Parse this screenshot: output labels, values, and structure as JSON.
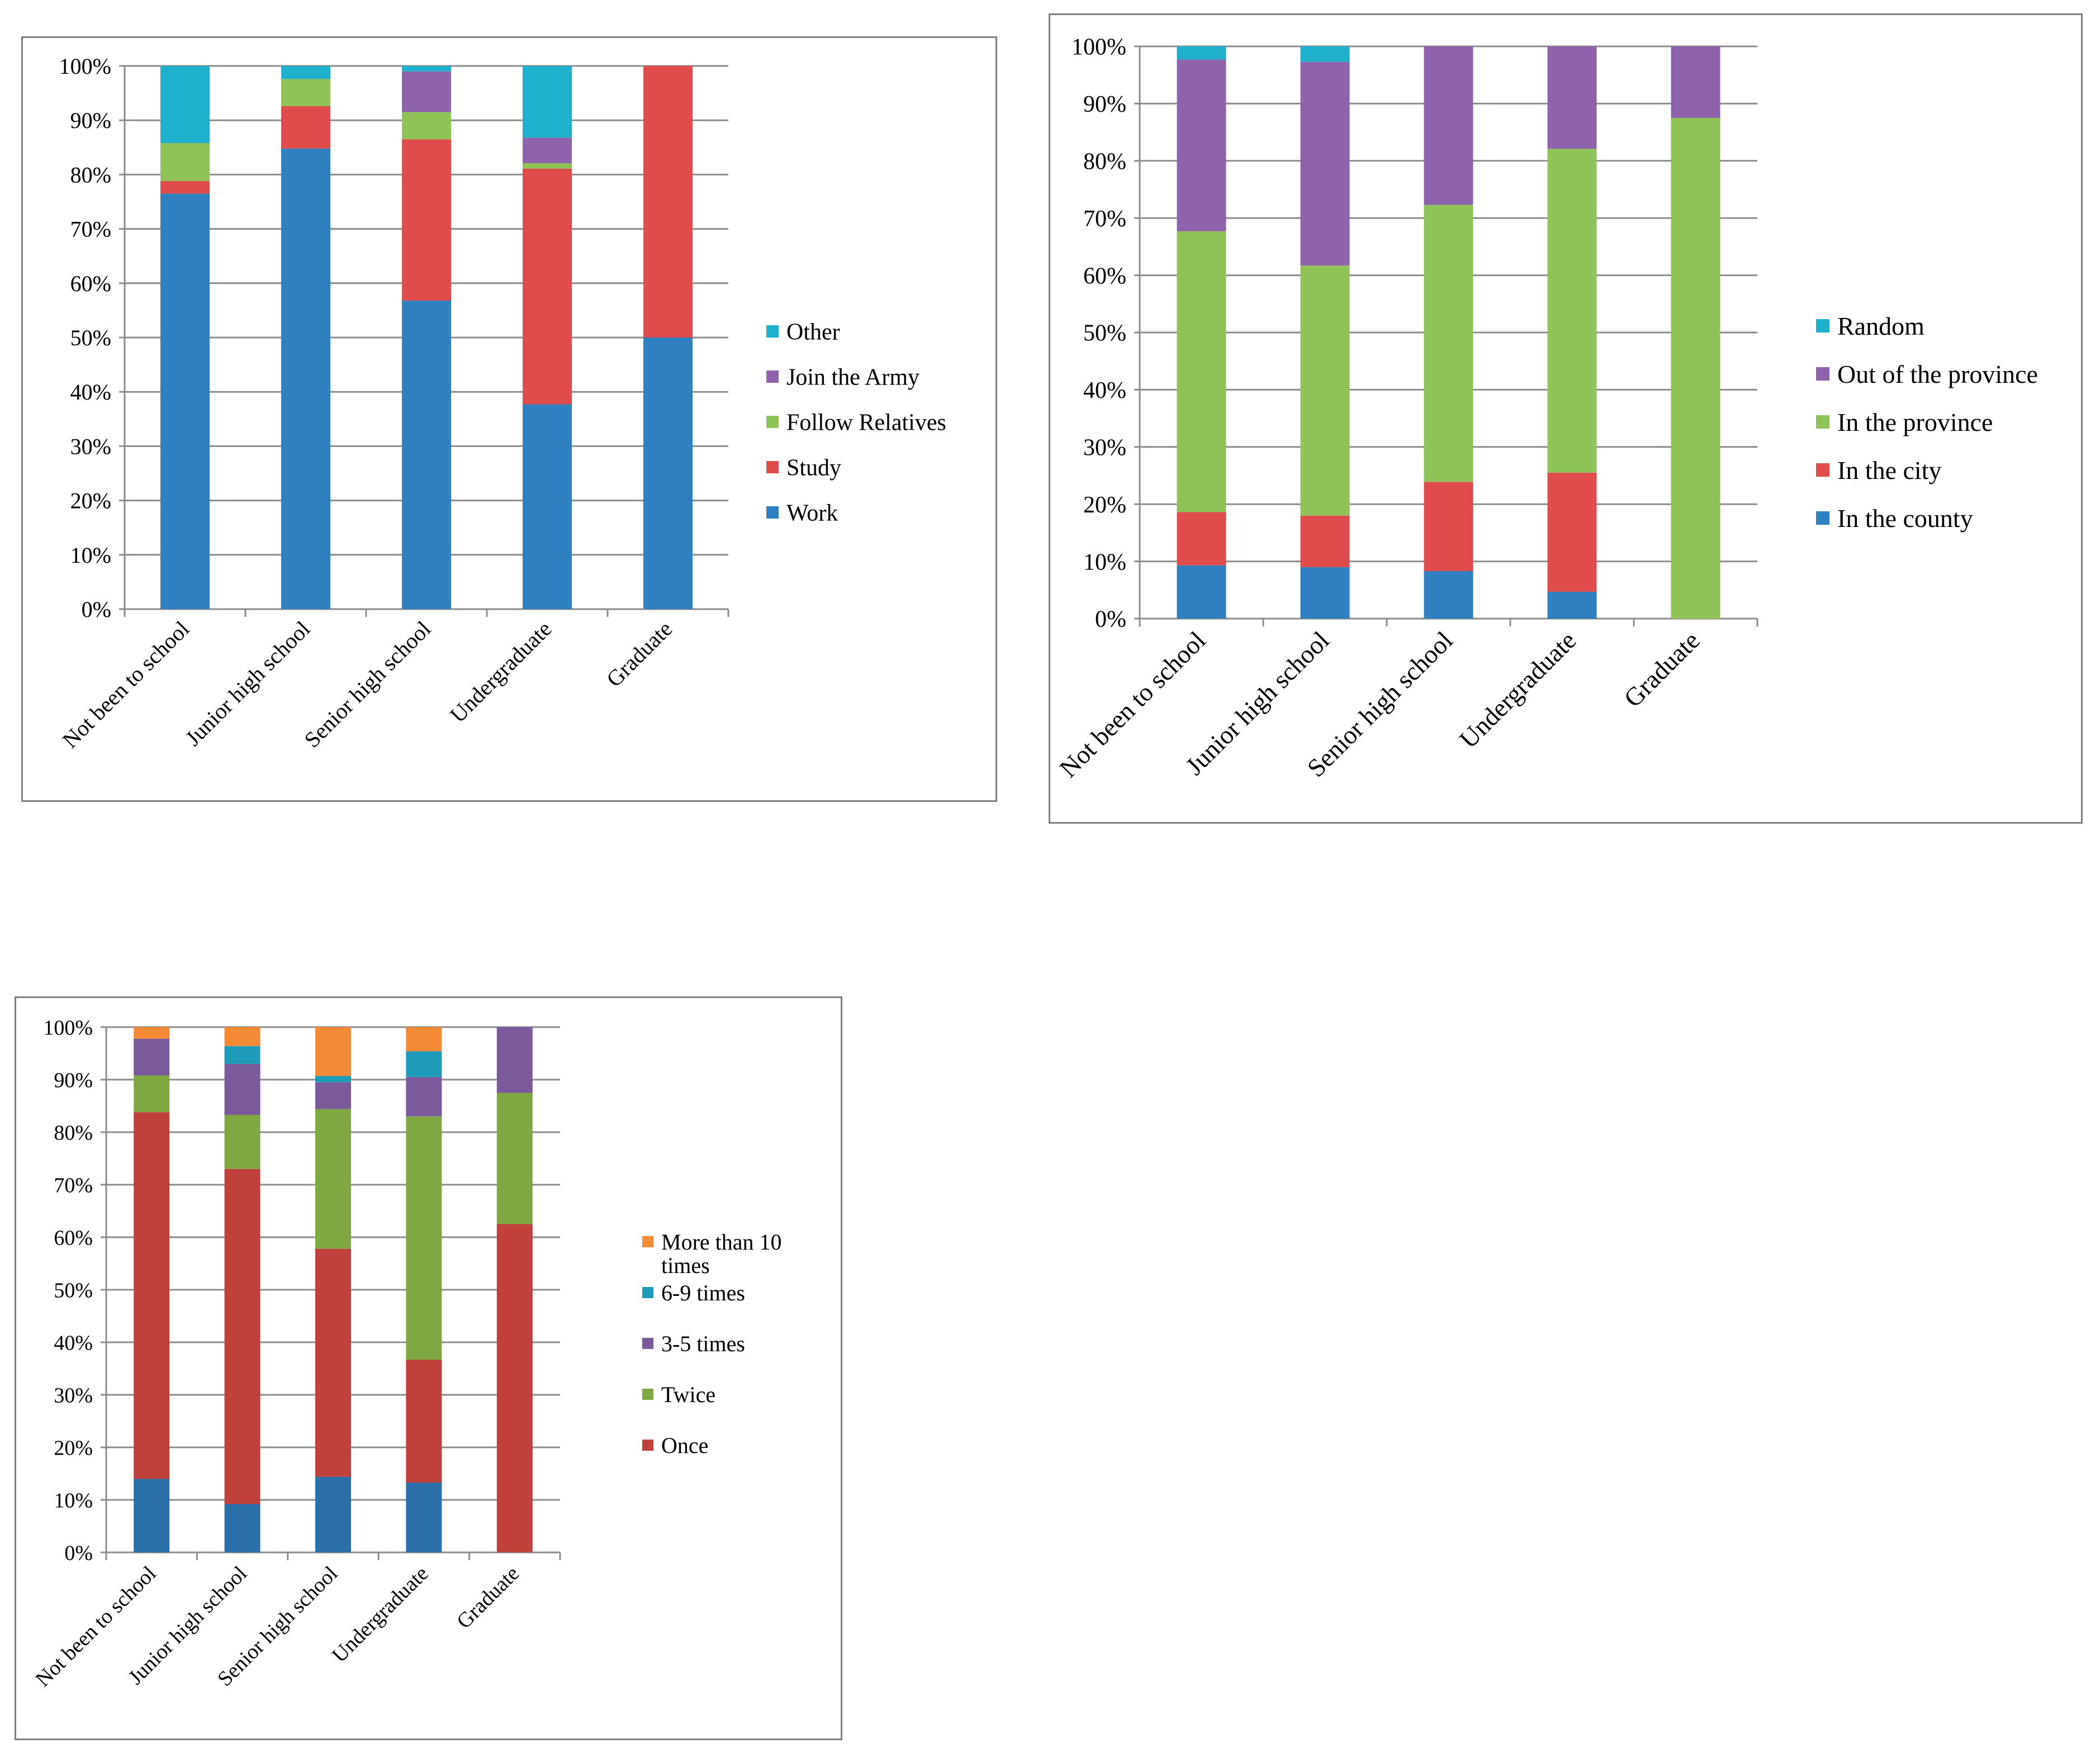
{
  "chart_data": [
    {
      "type": "bar",
      "stacked": true,
      "title": "",
      "xlabel": "",
      "ylabel": "",
      "ylim": [
        0,
        100
      ],
      "yticks": [
        "0%",
        "10%",
        "20%",
        "30%",
        "40%",
        "50%",
        "60%",
        "70%",
        "80%",
        "90%",
        "100%"
      ],
      "categories": [
        "Not been to school",
        "Junior high school",
        "Senior high school",
        "Undergraduate",
        "Graduate"
      ],
      "series": [
        {
          "name": "Work",
          "color": "#2e80c0",
          "values": [
            76.5,
            84.8,
            56.8,
            37.7,
            50.0
          ]
        },
        {
          "name": "Study",
          "color": "#e04b4b",
          "values": [
            2.3,
            7.8,
            29.7,
            43.4,
            50.0
          ]
        },
        {
          "name": "Follow Relatives",
          "color": "#8fc257",
          "values": [
            7.0,
            5.0,
            5.0,
            1.0,
            0
          ]
        },
        {
          "name": "Join the Army",
          "color": "#8f63ab",
          "values": [
            0,
            0,
            7.5,
            4.7,
            0
          ]
        },
        {
          "name": "Other",
          "color": "#1eb0cc",
          "values": [
            14.2,
            2.4,
            1.0,
            13.2,
            0
          ]
        }
      ],
      "legend": "right"
    },
    {
      "type": "bar",
      "stacked": true,
      "title": "",
      "xlabel": "",
      "ylabel": "",
      "ylim": [
        0,
        100
      ],
      "yticks": [
        "0%",
        "10%",
        "20%",
        "30%",
        "40%",
        "50%",
        "60%",
        "70%",
        "80%",
        "90%",
        "100%"
      ],
      "categories": [
        "Not been to school",
        "Junior high school",
        "Senior high school",
        "Undergraduate",
        "Graduate"
      ],
      "series": [
        {
          "name": "In the county",
          "color": "#2e80c0",
          "values": [
            9.3,
            9.0,
            8.3,
            4.7,
            0
          ]
        },
        {
          "name": "In the city",
          "color": "#e04b4b",
          "values": [
            9.3,
            9.0,
            15.6,
            20.8,
            0
          ]
        },
        {
          "name": "In the province",
          "color": "#8fc257",
          "values": [
            49.1,
            43.7,
            48.4,
            56.6,
            87.5
          ]
        },
        {
          "name": "Out of the province",
          "color": "#8f63ab",
          "values": [
            30.0,
            35.6,
            27.7,
            17.9,
            12.5
          ]
        },
        {
          "name": "Random",
          "color": "#1eb0cc",
          "values": [
            2.3,
            2.7,
            0,
            0,
            0
          ]
        }
      ],
      "legend": "right"
    },
    {
      "type": "bar",
      "stacked": true,
      "title": "",
      "xlabel": "",
      "ylabel": "",
      "ylim": [
        0,
        100
      ],
      "yticks": [
        "0%",
        "10%",
        "20%",
        "30%",
        "40%",
        "50%",
        "60%",
        "70%",
        "80%",
        "90%",
        "100%"
      ],
      "categories": [
        "Not been to school",
        "Junior high school",
        "Senior high school",
        "Undergraduate",
        "Graduate"
      ],
      "series": [
        {
          "name": "",
          "color": "#2b6fa8",
          "values": [
            14.0,
            9.2,
            14.4,
            13.3,
            0
          ]
        },
        {
          "name": "Once",
          "color": "#c0403c",
          "values": [
            69.8,
            63.8,
            43.4,
            23.4,
            62.5
          ]
        },
        {
          "name": "Twice",
          "color": "#7fa843",
          "values": [
            7.0,
            10.3,
            26.6,
            46.3,
            25.0
          ]
        },
        {
          "name": "3-5 times",
          "color": "#7a5a9b",
          "values": [
            7.0,
            9.7,
            5.1,
            7.5,
            12.5
          ]
        },
        {
          "name": "6-9 times",
          "color": "#1e9bb8",
          "values": [
            0,
            3.4,
            1.2,
            4.9,
            0
          ]
        },
        {
          "name": "More than 10 times",
          "color": "#f58a36",
          "values": [
            2.2,
            3.6,
            9.3,
            4.6,
            0
          ]
        }
      ],
      "legend_lines": [
        "More than 10",
        "times"
      ],
      "legend": "right"
    }
  ]
}
